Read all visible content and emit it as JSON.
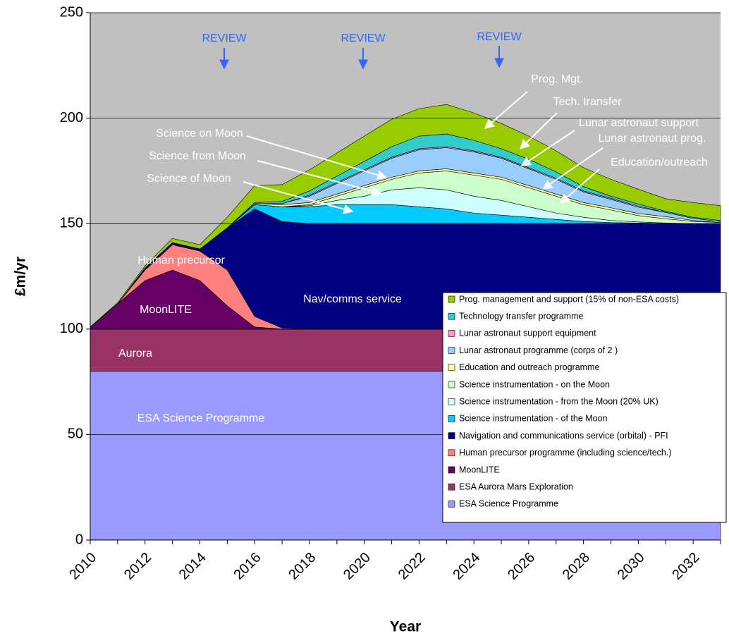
{
  "chart_data": {
    "type": "stacked_area",
    "x": [
      2010,
      2011,
      2012,
      2013,
      2014,
      2015,
      2016,
      2017,
      2018,
      2019,
      2020,
      2021,
      2022,
      2023,
      2024,
      2025,
      2026,
      2027,
      2028,
      2029,
      2030,
      2031,
      2032,
      2033
    ],
    "xlim": [
      2010,
      2033
    ],
    "xticks": [
      2010,
      2012,
      2014,
      2016,
      2018,
      2020,
      2022,
      2024,
      2026,
      2028,
      2030,
      2032
    ],
    "ylim": [
      0,
      250
    ],
    "yticks": [
      0,
      50,
      100,
      150,
      200,
      250
    ],
    "grid": true,
    "xlabel": "Year",
    "ylabel": "£m/yr",
    "series": [
      {
        "name": "ESA Science Programme",
        "color": "#9999ff",
        "values": [
          80,
          80,
          80,
          80,
          80,
          80,
          80,
          80,
          80,
          80,
          80,
          80,
          80,
          80,
          80,
          80,
          80,
          80,
          80,
          80,
          80,
          80,
          80,
          80
        ]
      },
      {
        "name": "ESA Aurora Mars Exploration",
        "color": "#993366",
        "values": [
          20,
          20,
          20,
          20,
          20,
          20,
          20,
          20,
          20,
          20,
          20,
          20,
          20,
          20,
          20,
          20,
          20,
          20,
          20,
          20,
          20,
          20,
          20,
          20
        ]
      },
      {
        "name": "MoonLITE",
        "color": "#660066",
        "values": [
          1,
          12,
          23,
          28,
          23,
          11,
          1,
          0,
          0,
          0,
          0,
          0,
          0,
          0,
          0,
          0,
          0,
          0,
          0,
          0,
          0,
          0,
          0,
          0
        ]
      },
      {
        "name": "Human precursor programme (including science/tech.)",
        "color": "#ff8080",
        "values": [
          0,
          0,
          5,
          12,
          14,
          17,
          5,
          0.5,
          0,
          0,
          0,
          0,
          0,
          0,
          0,
          0,
          0,
          0,
          0,
          0,
          0,
          0,
          0,
          0
        ]
      },
      {
        "name": "Navigation and communications service (orbital) - PFI",
        "color": "#000080",
        "values": [
          0,
          0,
          1,
          1,
          1,
          20,
          51,
          50.5,
          50,
          50,
          50,
          50,
          50,
          50,
          50,
          50,
          50,
          50,
          50,
          50,
          50,
          50,
          50,
          50
        ]
      },
      {
        "name": "Science instrumentation - of the Moon",
        "color": "#00ccff",
        "values": [
          0,
          0,
          0,
          0,
          0,
          0,
          2,
          7,
          8,
          9,
          9,
          9,
          8,
          7,
          5,
          4,
          3,
          2,
          1,
          0.5,
          0.3,
          0,
          0,
          0
        ]
      },
      {
        "name": "Science instrumentation - from the Moon (20% UK)",
        "color": "#ccffff",
        "values": [
          0,
          0,
          0,
          0,
          0,
          0,
          0,
          0,
          0.5,
          2,
          4,
          7,
          9,
          9,
          8,
          7,
          5,
          3,
          2,
          1,
          0.5,
          0.3,
          0,
          0
        ]
      },
      {
        "name": "Science instrumentation - on the Moon",
        "color": "#ccffcc",
        "values": [
          0,
          0,
          0,
          0,
          0,
          0,
          0,
          0,
          0.5,
          2,
          4,
          5,
          7,
          9,
          10,
          10,
          9,
          8,
          6,
          5,
          3,
          2,
          1,
          0.5
        ]
      },
      {
        "name": "Education and outreach programme",
        "color": "#ffff99",
        "values": [
          0,
          0,
          0,
          0,
          0,
          0,
          0.5,
          1,
          1,
          1,
          1,
          1,
          1,
          1,
          1,
          1,
          1,
          1,
          1,
          1,
          1,
          1,
          0.5,
          0
        ]
      },
      {
        "name": "Lunar astronaut programme (corps of 2 )",
        "color": "#99ccff",
        "values": [
          0,
          0,
          0,
          0,
          0,
          0,
          0,
          0.5,
          3,
          5,
          7,
          9,
          10,
          10,
          10,
          9,
          8,
          7,
          5,
          4,
          3,
          2,
          1,
          0.5
        ]
      },
      {
        "name": "Lunar astronaut support equipment",
        "color": "#ff99cc",
        "values": [
          0,
          0,
          0,
          0,
          0,
          0,
          0,
          0,
          0.5,
          0.5,
          0.5,
          0.5,
          0.5,
          0.5,
          0.5,
          0.5,
          0.5,
          0.5,
          0.5,
          0.5,
          0.5,
          0,
          0,
          0
        ]
      },
      {
        "name": "Technology transfer programme",
        "color": "#33cccc",
        "values": [
          0,
          0,
          0,
          0,
          0,
          0,
          0.5,
          1,
          2,
          3,
          4,
          5,
          6,
          6,
          5,
          4,
          4,
          3,
          2,
          1,
          1,
          0.5,
          0.5,
          0.5
        ]
      },
      {
        "name": "Prog. management and support (15% of non-ESA costs)",
        "color": "#99cc00",
        "values": [
          0,
          0.5,
          1,
          2,
          2,
          5,
          8,
          8,
          10,
          11,
          12,
          13,
          13,
          14,
          13,
          12,
          11,
          10,
          9,
          8,
          7,
          6,
          7,
          7
        ]
      }
    ],
    "annotations": [
      "REVIEW",
      "REVIEW",
      "REVIEW",
      "Prog. Mgt.",
      "Tech. transfer",
      "Lunar astronaut support",
      "Lunar astronaut prog.",
      "Education/outreach",
      "Science on Moon",
      "Science from Moon",
      "Science of Moon",
      "ESA Science Programme",
      "Aurora",
      "MoonLITE",
      "Human precursor",
      "Nav/comms service"
    ]
  }
}
